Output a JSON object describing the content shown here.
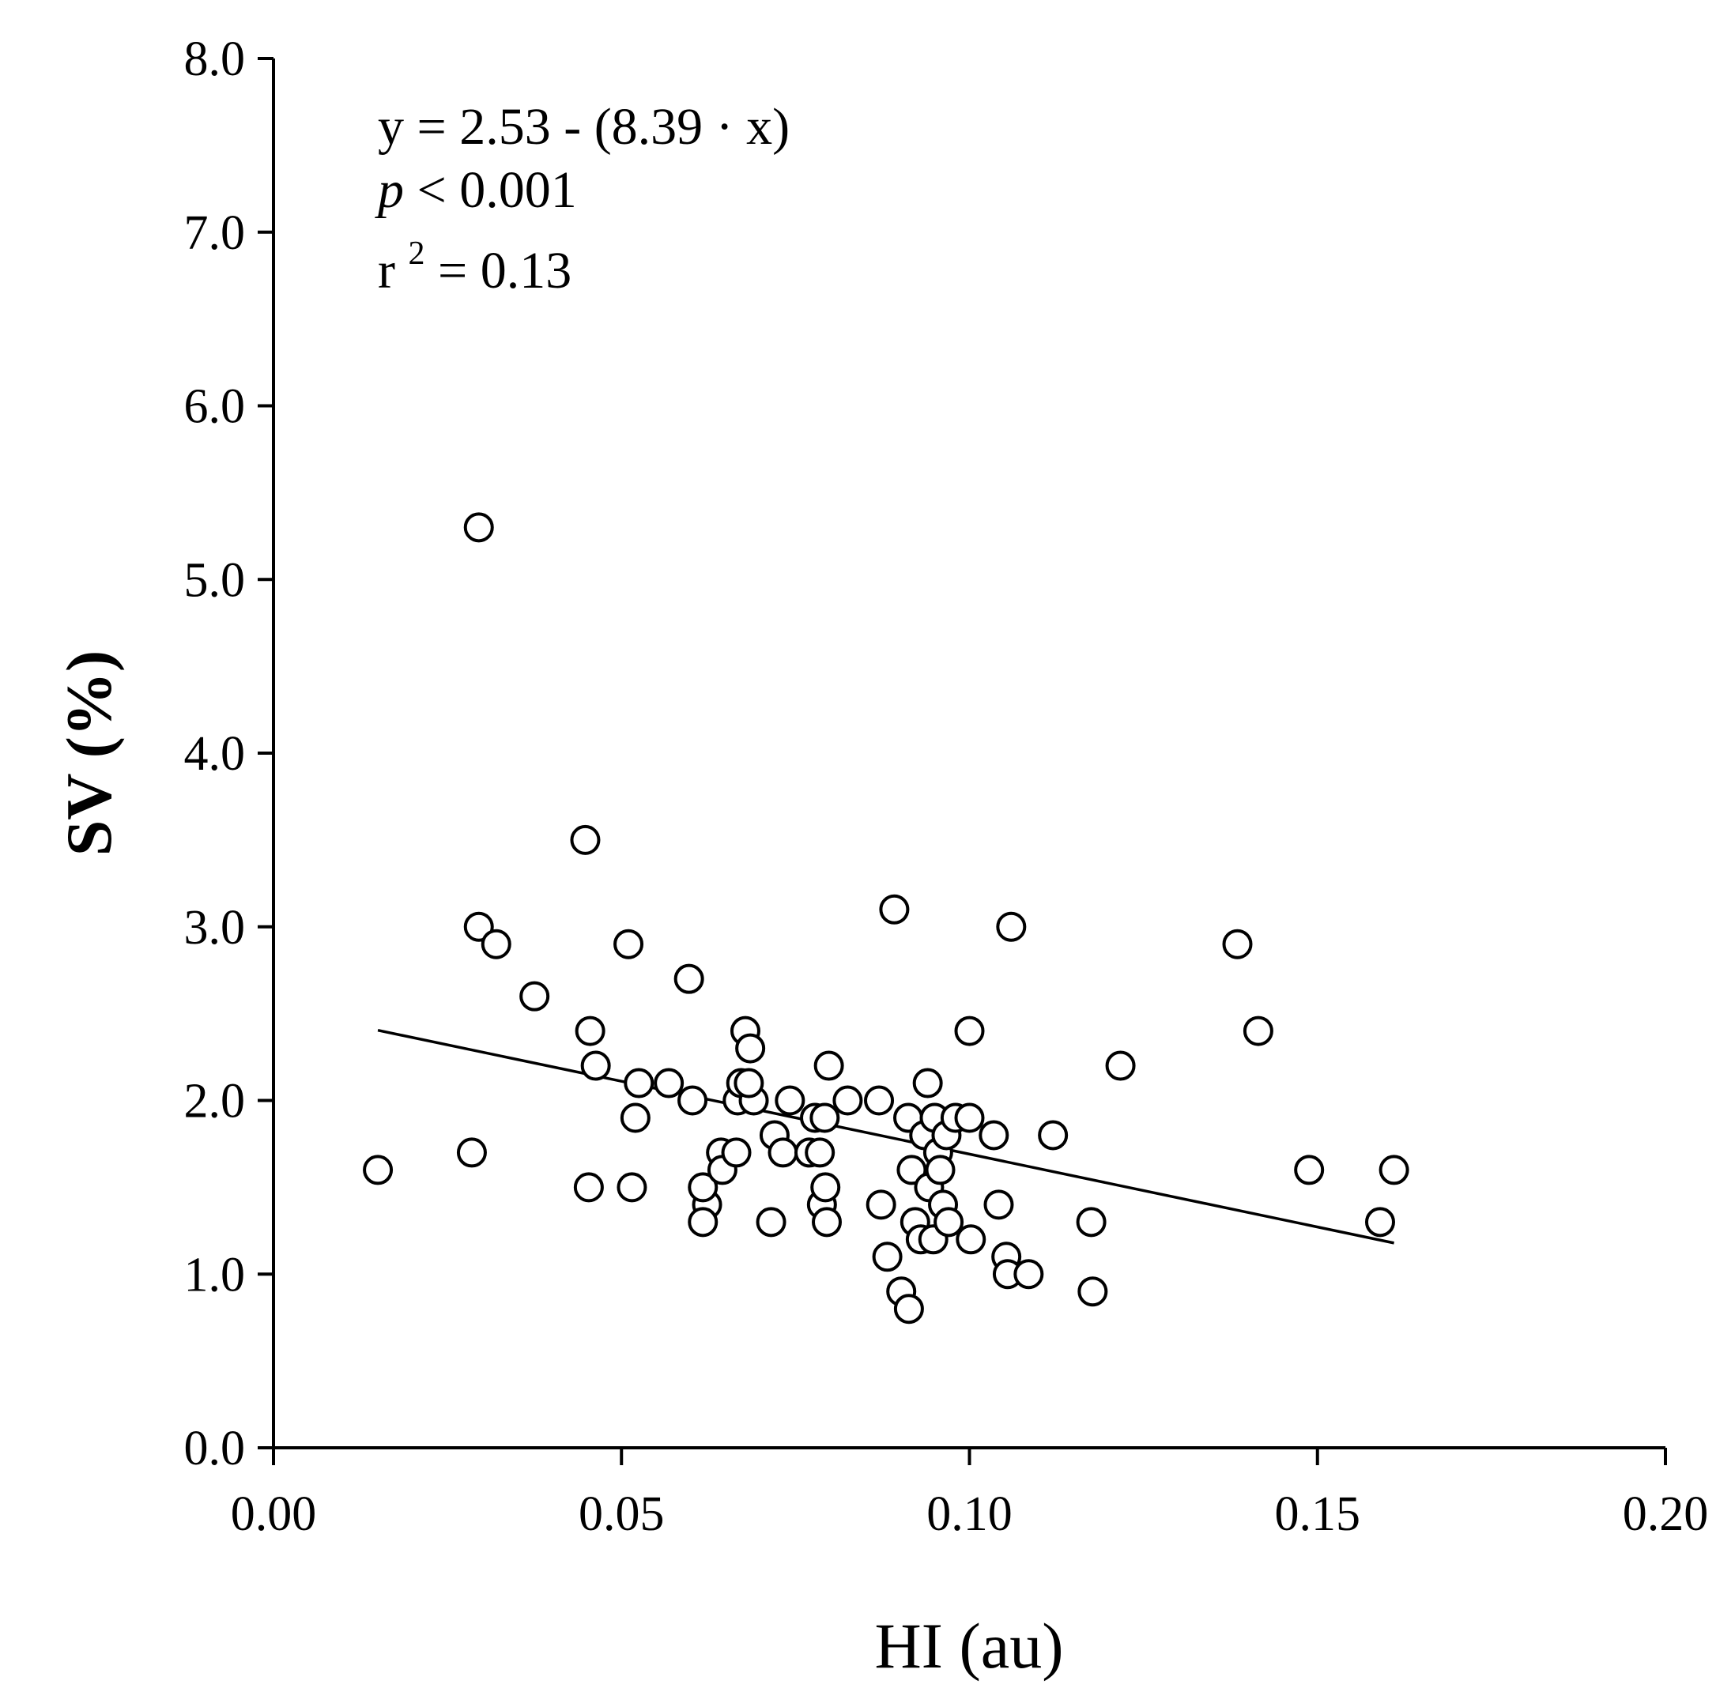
{
  "chart_data": {
    "type": "scatter",
    "title": "",
    "xlabel": "HI (au)",
    "ylabel": "SV (%)",
    "xlim": [
      0,
      0.2
    ],
    "ylim": [
      0,
      8
    ],
    "x_ticks": [
      "0.00",
      "0.05",
      "0.10",
      "0.15",
      "0.20"
    ],
    "x_tick_values": [
      0,
      0.05,
      0.1,
      0.15,
      0.2
    ],
    "y_ticks": [
      "0.0",
      "1.0",
      "2.0",
      "3.0",
      "4.0",
      "5.0",
      "6.0",
      "7.0",
      "8.0"
    ],
    "y_tick_values": [
      0,
      1,
      2,
      3,
      4,
      5,
      6,
      7,
      8
    ],
    "grid": false,
    "annotation": {
      "equation": "y = 2.53 - (8.39 · x)",
      "p_symbol": "p",
      "p_rest": " < 0.001",
      "r_symbol": "r",
      "r_exponent": "2",
      "r_rest": " = 0.13"
    },
    "regression": {
      "intercept": 2.53,
      "slope": -8.39,
      "x_range": [
        0.015,
        0.161
      ]
    },
    "series": [
      {
        "name": "observations",
        "points": [
          [
            0.015,
            1.6
          ],
          [
            0.0295,
            5.3
          ],
          [
            0.0295,
            3.0
          ],
          [
            0.0285,
            1.7
          ],
          [
            0.032,
            2.9
          ],
          [
            0.0375,
            2.6
          ],
          [
            0.0448,
            3.5
          ],
          [
            0.0455,
            2.4
          ],
          [
            0.0463,
            2.2
          ],
          [
            0.0453,
            1.5
          ],
          [
            0.051,
            2.9
          ],
          [
            0.052,
            1.9
          ],
          [
            0.0525,
            2.1
          ],
          [
            0.0515,
            1.5
          ],
          [
            0.0568,
            2.1
          ],
          [
            0.0597,
            2.7
          ],
          [
            0.0602,
            2.0
          ],
          [
            0.0623,
            1.4
          ],
          [
            0.0617,
            1.5
          ],
          [
            0.0617,
            1.3
          ],
          [
            0.0643,
            1.7
          ],
          [
            0.0645,
            1.6
          ],
          [
            0.0665,
            1.7
          ],
          [
            0.0667,
            2.0
          ],
          [
            0.0672,
            2.1
          ],
          [
            0.0678,
            2.4
          ],
          [
            0.0685,
            2.3
          ],
          [
            0.069,
            2.0
          ],
          [
            0.0683,
            2.1
          ],
          [
            0.0715,
            1.3
          ],
          [
            0.072,
            1.8
          ],
          [
            0.0732,
            1.7
          ],
          [
            0.0742,
            2.0
          ],
          [
            0.077,
            1.7
          ],
          [
            0.0778,
            1.9
          ],
          [
            0.0785,
            1.7
          ],
          [
            0.0792,
            1.9
          ],
          [
            0.0798,
            2.2
          ],
          [
            0.0788,
            1.4
          ],
          [
            0.0793,
            1.5
          ],
          [
            0.0795,
            1.3
          ],
          [
            0.0825,
            2.0
          ],
          [
            0.087,
            2.0
          ],
          [
            0.0873,
            1.4
          ],
          [
            0.0882,
            1.1
          ],
          [
            0.0892,
            3.1
          ],
          [
            0.0902,
            0.9
          ],
          [
            0.0913,
            0.8
          ],
          [
            0.0912,
            1.9
          ],
          [
            0.0917,
            1.6
          ],
          [
            0.0922,
            1.3
          ],
          [
            0.093,
            1.2
          ],
          [
            0.0935,
            1.8
          ],
          [
            0.094,
            2.1
          ],
          [
            0.0942,
            1.5
          ],
          [
            0.0948,
            1.2
          ],
          [
            0.095,
            1.9
          ],
          [
            0.0955,
            1.7
          ],
          [
            0.0958,
            1.6
          ],
          [
            0.0962,
            1.4
          ],
          [
            0.0967,
            1.8
          ],
          [
            0.097,
            1.3
          ],
          [
            0.098,
            1.9
          ],
          [
            0.1,
            1.9
          ],
          [
            0.1,
            2.4
          ],
          [
            0.1002,
            1.2
          ],
          [
            0.1035,
            1.8
          ],
          [
            0.1042,
            1.4
          ],
          [
            0.1053,
            1.1
          ],
          [
            0.1055,
            1.0
          ],
          [
            0.106,
            3.0
          ],
          [
            0.1085,
            1.0
          ],
          [
            0.112,
            1.8
          ],
          [
            0.1175,
            1.3
          ],
          [
            0.1177,
            0.9
          ],
          [
            0.1217,
            2.2
          ],
          [
            0.1385,
            2.9
          ],
          [
            0.1415,
            2.4
          ],
          [
            0.1488,
            1.6
          ],
          [
            0.159,
            1.3
          ],
          [
            0.161,
            1.6
          ]
        ]
      }
    ]
  }
}
